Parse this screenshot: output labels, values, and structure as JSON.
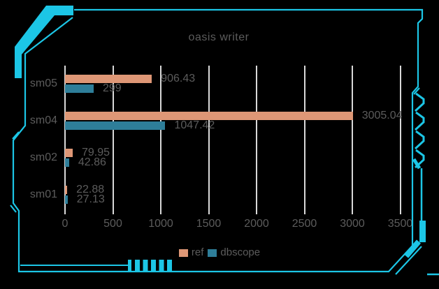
{
  "frame": {
    "color": "#1cc6e6",
    "style": "sci-fi-hud-corner-border"
  },
  "chart_data": {
    "type": "bar",
    "orientation": "horizontal",
    "title": "oasis writer",
    "categories": [
      "sm05",
      "sm04",
      "sm02",
      "sm01"
    ],
    "series": [
      {
        "name": "ref",
        "color": "#de9776",
        "values": [
          906.43,
          3005.04,
          79.95,
          22.88
        ],
        "labels": [
          "906.43",
          "3005.04",
          "79.95",
          "22.88"
        ]
      },
      {
        "name": "dbscope",
        "color": "#2e7e99",
        "values": [
          299,
          1047.42,
          42.86,
          27.13
        ],
        "labels": [
          "299",
          "1047.42",
          "42.86",
          "27.13"
        ]
      }
    ],
    "x_ticks": [
      0,
      500,
      1000,
      1500,
      2000,
      2500,
      3000,
      3500
    ],
    "x_tick_labels": [
      "0",
      "500",
      "1000",
      "1500",
      "2000",
      "2500",
      "3000",
      "3500"
    ],
    "xlim": [
      0,
      3500
    ],
    "grid": true,
    "legend_position": "bottom-center",
    "background": "#000000",
    "text_color": "#5c5c5c",
    "gridline_color": "#d9d9d9"
  }
}
